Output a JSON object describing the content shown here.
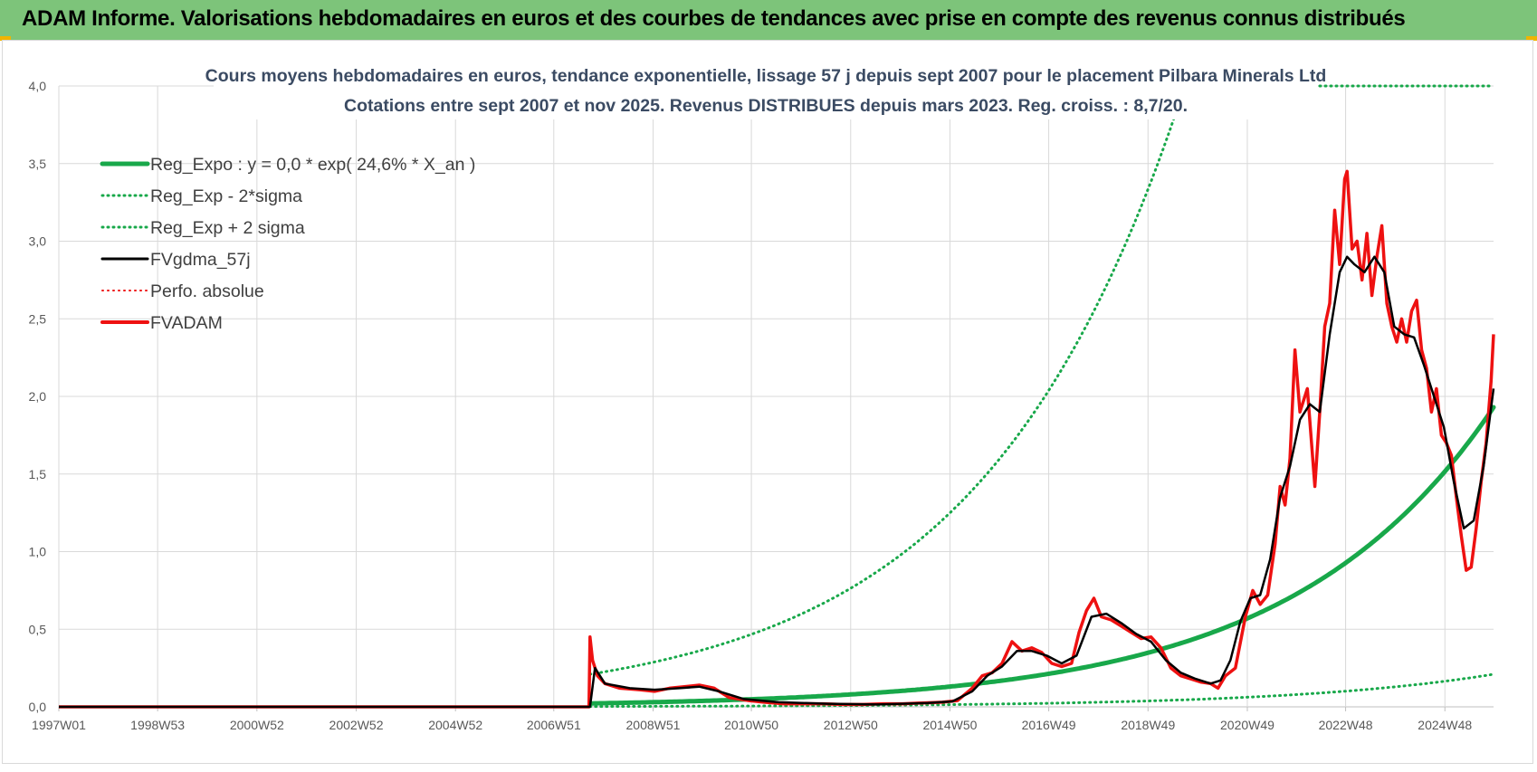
{
  "header": {
    "title": "ADAM Informe. Valorisations hebdomadaires en euros et des courbes de tendances avec prise en compte des revenus connus distribués"
  },
  "colors": {
    "banner": "#7dc47a",
    "reg_green": "#18a84a",
    "red": "#ee1111",
    "black": "#000000",
    "grid": "#d9d9d9"
  },
  "chart_data": {
    "type": "line",
    "title_line1": "Cours moyens hebdomadaires en euros, tendance exponentielle, lissage 57 j depuis sept 2007 pour le placement Pilbara Minerals Ltd",
    "title_line2": "Cotations entre sept 2007 et nov 2025. Revenus DISTRIBUES depuis mars 2023. Reg. croiss. : 8,7/20.",
    "xlabel": "",
    "ylabel": "",
    "ylim": [
      0,
      4
    ],
    "xlim": [
      1997.0,
      2025.9
    ],
    "yticks": [
      "0,0",
      "0,5",
      "1,0",
      "1,5",
      "2,0",
      "2,5",
      "3,0",
      "3,5",
      "4,0"
    ],
    "xticks": [
      {
        "label": "1997W01",
        "x": 1997.0
      },
      {
        "label": "1998W53",
        "x": 1998.99
      },
      {
        "label": "2000W52",
        "x": 2000.99
      },
      {
        "label": "2002W52",
        "x": 2002.99
      },
      {
        "label": "2004W52",
        "x": 2004.99
      },
      {
        "label": "2006W51",
        "x": 2006.97
      },
      {
        "label": "2008W51",
        "x": 2008.97
      },
      {
        "label": "2010W50",
        "x": 2010.95
      },
      {
        "label": "2012W50",
        "x": 2012.95
      },
      {
        "label": "2014W50",
        "x": 2014.95
      },
      {
        "label": "2016W49",
        "x": 2016.94
      },
      {
        "label": "2018W49",
        "x": 2018.94
      },
      {
        "label": "2020W49",
        "x": 2020.94
      },
      {
        "label": "2022W48",
        "x": 2022.92
      },
      {
        "label": "2024W48",
        "x": 2024.92
      }
    ],
    "legend": [
      {
        "label": "Reg_Expo : y = 0,0 * exp( 24,6% *  X_an )",
        "color": "#18a84a",
        "style": "solid",
        "width": 5
      },
      {
        "label": "Reg_Exp - 2*sigma",
        "color": "#18a84a",
        "style": "dotted",
        "width": 3
      },
      {
        "label": "Reg_Exp + 2 sigma",
        "color": "#18a84a",
        "style": "dotted",
        "width": 3
      },
      {
        "label": "FVgdma_57j",
        "color": "#000000",
        "style": "solid",
        "width": 3
      },
      {
        "label": "Perfo. absolue",
        "color": "#ee1111",
        "style": "dotted",
        "width": 2
      },
      {
        "label": "FVADAM",
        "color": "#ee1111",
        "style": "solid",
        "width": 4
      }
    ],
    "series": [
      {
        "name": "Reg_Expo",
        "x_start": 2007.7,
        "x_end": 2025.9,
        "value_at_x_end": 1.93,
        "growth_rate": 0.246
      },
      {
        "name": "Reg_Exp + 2 sigma",
        "x_start": 2007.7,
        "x_end": 2025.9,
        "value_at_x_start": 0.21,
        "cap": 4.0
      },
      {
        "name": "Reg_Exp - 2*sigma",
        "x_start": 2007.7,
        "x_end": 2025.9,
        "value_at_x_end": 0.21
      },
      {
        "name": "FVADAM",
        "x": [
          1997.0,
          2007.68,
          2007.7,
          2007.75,
          2007.85,
          2008.0,
          2008.3,
          2008.7,
          2009.0,
          2009.3,
          2009.6,
          2009.9,
          2010.2,
          2010.5,
          2010.9,
          2011.2,
          2011.6,
          2012.0,
          2012.4,
          2012.8,
          2013.2,
          2013.6,
          2014.0,
          2014.4,
          2014.8,
          2015.1,
          2015.4,
          2015.6,
          2015.8,
          2016.0,
          2016.2,
          2016.4,
          2016.6,
          2016.8,
          2017.0,
          2017.2,
          2017.4,
          2017.55,
          2017.7,
          2017.85,
          2018.0,
          2018.2,
          2018.4,
          2018.6,
          2018.8,
          2019.0,
          2019.2,
          2019.4,
          2019.6,
          2019.8,
          2020.0,
          2020.2,
          2020.35,
          2020.5,
          2020.7,
          2020.9,
          2021.05,
          2021.2,
          2021.35,
          2021.5,
          2021.6,
          2021.7,
          2021.8,
          2021.9,
          2022.0,
          2022.15,
          2022.3,
          2022.4,
          2022.5,
          2022.6,
          2022.7,
          2022.8,
          2022.9,
          2022.95,
          2023.05,
          2023.15,
          2023.25,
          2023.35,
          2023.45,
          2023.55,
          2023.65,
          2023.75,
          2023.85,
          2023.95,
          2024.05,
          2024.15,
          2024.25,
          2024.35,
          2024.45,
          2024.55,
          2024.65,
          2024.75,
          2024.85,
          2024.95,
          2025.05,
          2025.15,
          2025.25,
          2025.35,
          2025.45,
          2025.55,
          2025.65,
          2025.75,
          2025.85,
          2025.9
        ],
        "values": [
          0.0,
          0.0,
          0.45,
          0.3,
          0.2,
          0.15,
          0.12,
          0.11,
          0.1,
          0.12,
          0.13,
          0.14,
          0.12,
          0.06,
          0.04,
          0.03,
          0.02,
          0.02,
          0.02,
          0.015,
          0.015,
          0.02,
          0.02,
          0.025,
          0.03,
          0.04,
          0.12,
          0.2,
          0.22,
          0.28,
          0.42,
          0.36,
          0.38,
          0.35,
          0.28,
          0.26,
          0.28,
          0.48,
          0.62,
          0.7,
          0.58,
          0.56,
          0.52,
          0.48,
          0.44,
          0.45,
          0.38,
          0.25,
          0.2,
          0.18,
          0.16,
          0.15,
          0.12,
          0.2,
          0.25,
          0.58,
          0.75,
          0.66,
          0.72,
          1.05,
          1.42,
          1.3,
          1.6,
          2.3,
          1.9,
          2.05,
          1.42,
          1.9,
          2.45,
          2.6,
          3.2,
          2.85,
          3.4,
          3.45,
          2.95,
          3.0,
          2.75,
          3.05,
          2.65,
          2.9,
          3.1,
          2.6,
          2.45,
          2.35,
          2.5,
          2.35,
          2.55,
          2.62,
          2.3,
          2.18,
          1.9,
          2.05,
          1.75,
          1.7,
          1.62,
          1.35,
          1.1,
          0.88,
          0.9,
          1.15,
          1.45,
          1.7,
          2.1,
          2.4
        ]
      },
      {
        "name": "FVgdma_57j",
        "x": [
          1997.0,
          2007.7,
          2007.8,
          2008.0,
          2008.5,
          2009.0,
          2009.5,
          2009.9,
          2010.3,
          2010.8,
          2011.5,
          2012.5,
          2013.5,
          2014.5,
          2015.0,
          2015.4,
          2015.7,
          2016.0,
          2016.3,
          2016.6,
          2016.9,
          2017.2,
          2017.5,
          2017.8,
          2018.1,
          2018.4,
          2018.7,
          2019.0,
          2019.3,
          2019.6,
          2019.9,
          2020.2,
          2020.4,
          2020.6,
          2020.8,
          2021.0,
          2021.2,
          2021.4,
          2021.6,
          2021.8,
          2022.0,
          2022.2,
          2022.4,
          2022.6,
          2022.8,
          2022.95,
          2023.1,
          2023.3,
          2023.5,
          2023.7,
          2023.9,
          2024.1,
          2024.3,
          2024.5,
          2024.7,
          2024.9,
          2025.1,
          2025.3,
          2025.5,
          2025.7,
          2025.9
        ],
        "values": [
          0.0,
          0.0,
          0.25,
          0.15,
          0.12,
          0.11,
          0.12,
          0.13,
          0.1,
          0.05,
          0.03,
          0.02,
          0.015,
          0.025,
          0.035,
          0.1,
          0.2,
          0.26,
          0.36,
          0.36,
          0.33,
          0.28,
          0.33,
          0.58,
          0.6,
          0.54,
          0.47,
          0.42,
          0.3,
          0.22,
          0.18,
          0.15,
          0.17,
          0.3,
          0.55,
          0.7,
          0.72,
          0.95,
          1.35,
          1.55,
          1.85,
          1.95,
          1.9,
          2.4,
          2.8,
          2.9,
          2.85,
          2.8,
          2.9,
          2.8,
          2.45,
          2.4,
          2.38,
          2.2,
          2.0,
          1.8,
          1.45,
          1.15,
          1.2,
          1.55,
          2.05
        ]
      }
    ]
  }
}
